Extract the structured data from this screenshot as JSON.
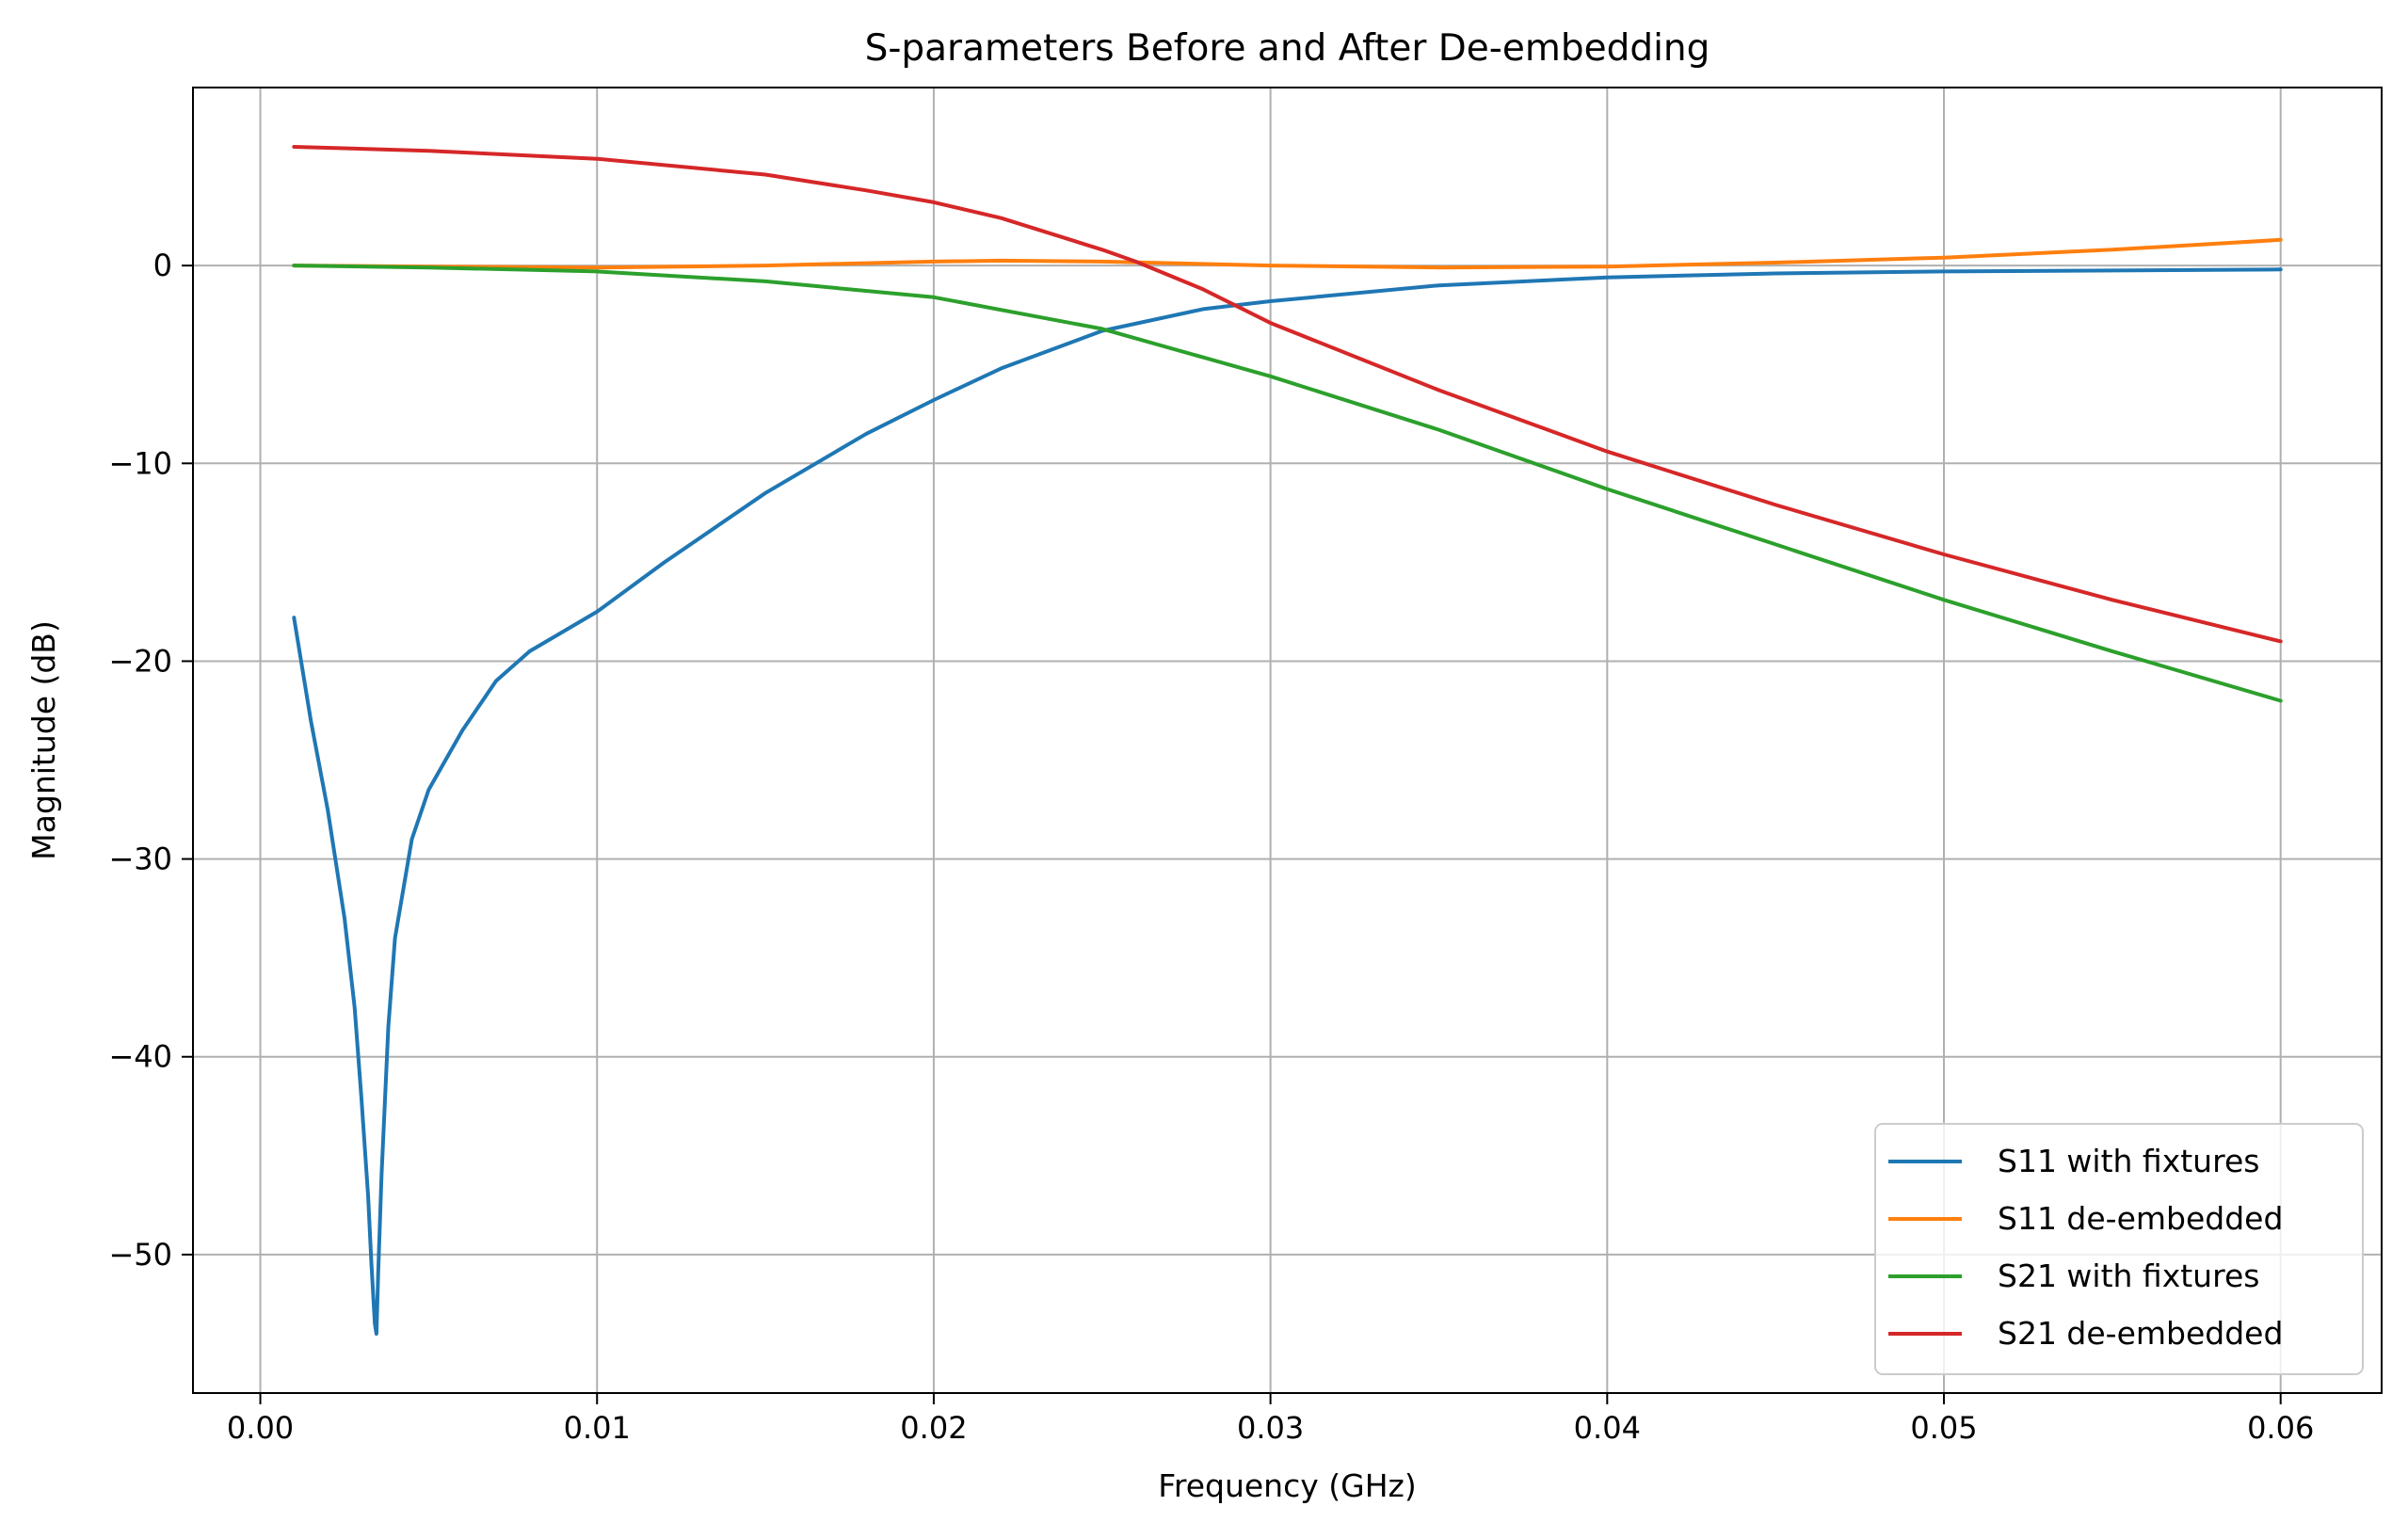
{
  "chart_data": {
    "type": "line",
    "title": "S-parameters Before and After De-embedding",
    "xlabel": "Frequency (GHz)",
    "ylabel": "Magnitude (dB)",
    "xlim": [
      -0.002,
      0.063
    ],
    "ylim": [
      -57,
      9
    ],
    "xticks": [
      0.0,
      0.01,
      0.02,
      0.03,
      0.04,
      0.05,
      0.06
    ],
    "xtick_labels": [
      "0.00",
      "0.01",
      "0.02",
      "0.03",
      "0.04",
      "0.05",
      "0.06"
    ],
    "yticks": [
      0,
      -10,
      -20,
      -30,
      -40,
      -50
    ],
    "ytick_labels": [
      "0",
      "−10",
      "−20",
      "−30",
      "−40",
      "−50"
    ],
    "grid": true,
    "legend_position": "lower-right",
    "series": [
      {
        "name": "S11 with fixtures",
        "color": "#1f77b4",
        "x": [
          0.001,
          0.0015,
          0.002,
          0.0025,
          0.0028,
          0.003,
          0.0032,
          0.0033,
          0.0034,
          0.00345,
          0.0035,
          0.0036,
          0.0038,
          0.004,
          0.0045,
          0.005,
          0.006,
          0.007,
          0.008,
          0.009,
          0.01,
          0.012,
          0.015,
          0.018,
          0.02,
          0.022,
          0.025,
          0.028,
          0.03,
          0.035,
          0.04,
          0.045,
          0.05,
          0.055,
          0.06
        ],
        "y": [
          -17.8,
          -23.0,
          -27.5,
          -33.0,
          -37.5,
          -42.0,
          -47.0,
          -50.5,
          -53.5,
          -54.0,
          -51.0,
          -46.0,
          -38.5,
          -34.0,
          -29.0,
          -26.5,
          -23.5,
          -21.0,
          -19.5,
          -18.5,
          -17.5,
          -15.0,
          -11.5,
          -8.5,
          -6.8,
          -5.2,
          -3.3,
          -2.2,
          -1.8,
          -1.0,
          -0.6,
          -0.4,
          -0.3,
          -0.25,
          -0.2
        ]
      },
      {
        "name": "S11 de-embedded",
        "color": "#ff7f0e",
        "x": [
          0.001,
          0.005,
          0.01,
          0.015,
          0.02,
          0.022,
          0.025,
          0.03,
          0.035,
          0.04,
          0.045,
          0.05,
          0.055,
          0.06
        ],
        "y": [
          0.0,
          -0.05,
          -0.1,
          0.0,
          0.2,
          0.25,
          0.2,
          0.0,
          -0.1,
          -0.05,
          0.15,
          0.4,
          0.8,
          1.3
        ]
      },
      {
        "name": "S21 with fixtures",
        "color": "#2ca02c",
        "x": [
          0.001,
          0.005,
          0.01,
          0.015,
          0.02,
          0.025,
          0.03,
          0.035,
          0.04,
          0.045,
          0.05,
          0.055,
          0.06
        ],
        "y": [
          0.0,
          -0.1,
          -0.3,
          -0.8,
          -1.6,
          -3.2,
          -5.6,
          -8.3,
          -11.3,
          -14.1,
          -16.9,
          -19.5,
          -22.0
        ]
      },
      {
        "name": "S21 de-embedded",
        "color": "#d62728",
        "x": [
          0.001,
          0.005,
          0.01,
          0.015,
          0.018,
          0.02,
          0.022,
          0.025,
          0.026,
          0.028,
          0.03,
          0.035,
          0.04,
          0.045,
          0.05,
          0.055,
          0.06
        ],
        "y": [
          6.0,
          5.8,
          5.4,
          4.6,
          3.8,
          3.2,
          2.4,
          0.8,
          0.2,
          -1.2,
          -2.9,
          -6.3,
          -9.4,
          -12.1,
          -14.6,
          -16.9,
          -19.0
        ]
      }
    ]
  }
}
